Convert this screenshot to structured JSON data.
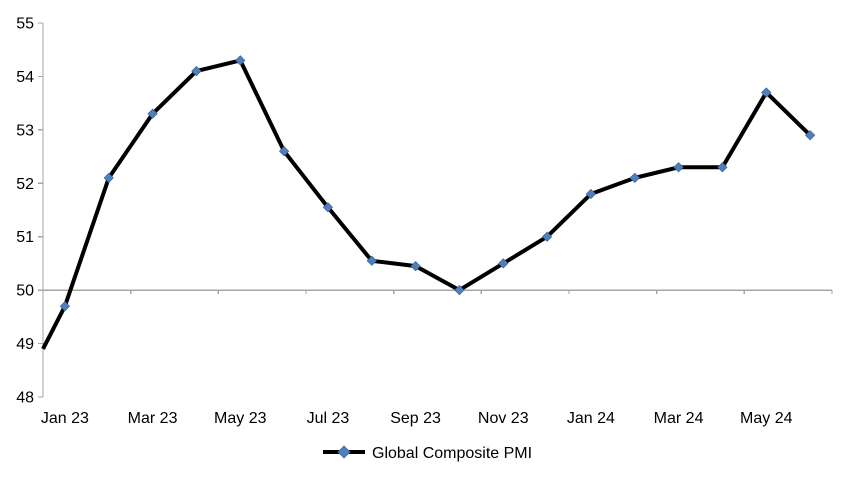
{
  "chart_data": {
    "type": "line",
    "title": "",
    "x_categories": [
      "Jan 23",
      "Feb 23",
      "Mar 23",
      "Apr 23",
      "May 23",
      "Jun 23",
      "Jul 23",
      "Aug 23",
      "Sep 23",
      "Oct 23",
      "Nov 23",
      "Dec 23",
      "Jan 24",
      "Feb 24",
      "Mar 24",
      "Apr 24",
      "May 24",
      "Jun 24"
    ],
    "series": [
      {
        "name": "Global Composite PMI",
        "values": [
          49.7,
          52.1,
          53.3,
          54.1,
          54.3,
          52.6,
          51.55,
          50.55,
          50.45,
          50.0,
          50.5,
          51.0,
          51.8,
          52.1,
          52.3,
          52.3,
          53.7,
          52.9
        ],
        "leading_edge_value": 48.9,
        "marker": "diamond"
      }
    ],
    "x_axis": {
      "shown_tick_labels": [
        "Jan 23",
        "Mar 23",
        "May 23",
        "Jul 23",
        "Sep 23",
        "Nov 23",
        "Jan 24",
        "Mar 24",
        "May 24"
      ],
      "label_every": 2,
      "axis_crosses_at": 50,
      "tick_every_categories": 2
    },
    "y_axis": {
      "min": 48,
      "max": 55,
      "step": 1,
      "tick_labels": [
        "55",
        "54",
        "53",
        "52",
        "51",
        "50",
        "49",
        "48"
      ]
    },
    "legend": {
      "position": "bottom-center",
      "entries": [
        "Global Composite PMI"
      ]
    },
    "grid": "off (only category axis line drawn at y=50)",
    "ylim": [
      48,
      55
    ],
    "style": {
      "line_color": "#000000",
      "marker_color": "#4E80BC",
      "marker_edge_color": "#39679E",
      "axis_color": "#A6A6A6",
      "text_color": "#000000",
      "background": "#FFFFFF"
    }
  }
}
